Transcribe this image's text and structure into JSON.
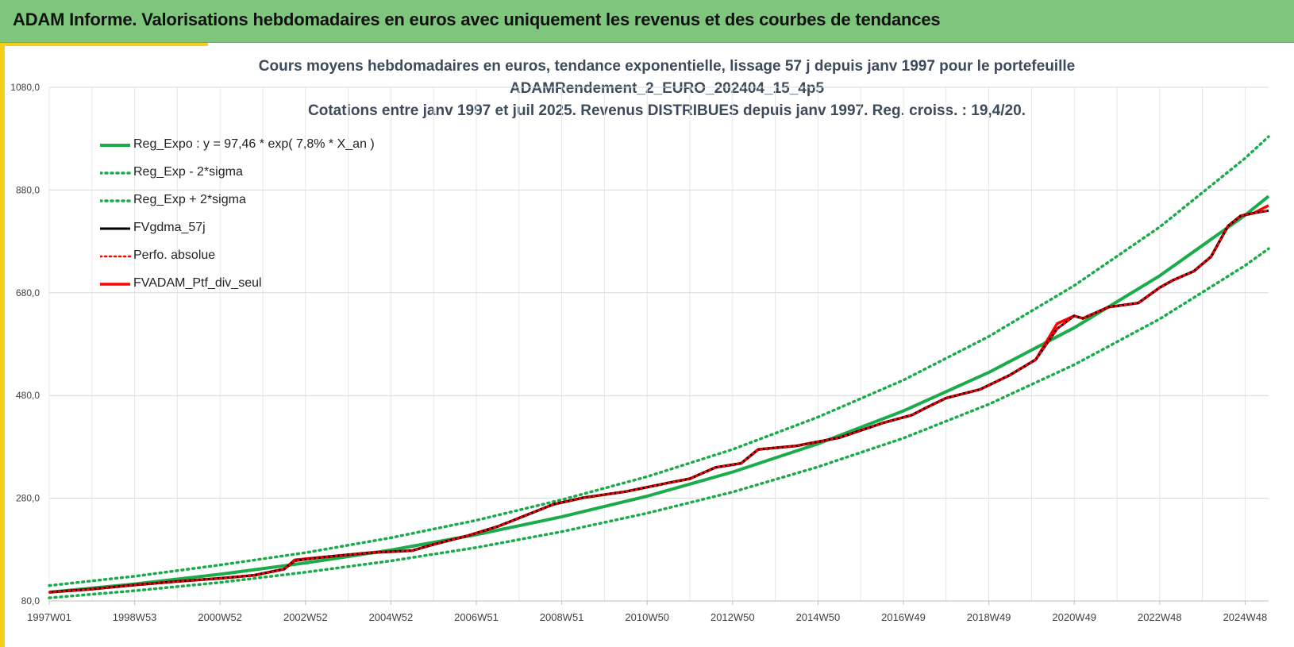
{
  "header": {
    "title": "ADAM Informe. Valorisations hebdomadaires en euros avec uniquement les revenus et des courbes de tendances"
  },
  "chart_data": {
    "type": "line",
    "title": [
      "Cours moyens hebdomadaires  en euros, tendance exponentielle, lissage 57 j depuis janv 1997 pour le portefeuille",
      "ADAMRendement_2_EURO_202404_15_4p5",
      "Cotations  entre janv 1997 et juil 2025. Revenus DISTRIBUES depuis janv 1997. Reg. croiss. : 19,4/20."
    ],
    "xlabel": "",
    "ylabel": "",
    "ylim": [
      80,
      1080
    ],
    "xlim": [
      1997.0,
      2025.55
    ],
    "y_ticks": [
      "80,0",
      "280,0",
      "480,0",
      "680,0",
      "880,0",
      "1080,0"
    ],
    "x_ticks": [
      {
        "label": "1997W01",
        "x": 1997.0
      },
      {
        "label": "1998W53",
        "x": 1999.0
      },
      {
        "label": "2000W52",
        "x": 2001.0
      },
      {
        "label": "2002W52",
        "x": 2003.0
      },
      {
        "label": "2004W52",
        "x": 2005.0
      },
      {
        "label": "2006W51",
        "x": 2007.0
      },
      {
        "label": "2008W51",
        "x": 2009.0
      },
      {
        "label": "2010W50",
        "x": 2011.0
      },
      {
        "label": "2012W50",
        "x": 2013.0
      },
      {
        "label": "2014W50",
        "x": 2015.0
      },
      {
        "label": "2016W49",
        "x": 2017.0
      },
      {
        "label": "2018W49",
        "x": 2019.0
      },
      {
        "label": "2020W49",
        "x": 2021.0
      },
      {
        "label": "2022W48",
        "x": 2023.0
      },
      {
        "label": "2024W48",
        "x": 2025.0
      }
    ],
    "grid": true,
    "legend_position": "top-left",
    "series": [
      {
        "name": "Reg_Expo : y = 97,46 *  exp( 7,8% *   X_an )",
        "color": "#1aab4b",
        "style": "solid",
        "x": [
          1997,
          1999,
          2001,
          2003,
          2005,
          2007,
          2009,
          2011,
          2013,
          2015,
          2017,
          2019,
          2021,
          2023,
          2025,
          2025.55
        ],
        "values": [
          97,
          113,
          132,
          154,
          179,
          209,
          244,
          284,
          331,
          386,
          450,
          525,
          612,
          713,
          831,
          868
        ]
      },
      {
        "name": "Reg_Exp - 2*sigma",
        "color": "#1aab4b",
        "style": "dotted",
        "x": [
          1997,
          1999,
          2001,
          2003,
          2005,
          2007,
          2009,
          2011,
          2013,
          2015,
          2017,
          2019,
          2021,
          2023,
          2025,
          2025.55
        ],
        "values": [
          86,
          100,
          116,
          136,
          158,
          184,
          215,
          251,
          292,
          341,
          397,
          463,
          540,
          629,
          733,
          766
        ]
      },
      {
        "name": "Reg_Exp + 2*sigma",
        "color": "#1aab4b",
        "style": "dotted",
        "x": [
          1997,
          1999,
          2001,
          2003,
          2005,
          2007,
          2009,
          2011,
          2013,
          2015,
          2017,
          2019,
          2021,
          2023,
          2025,
          2025.55
        ],
        "values": [
          110,
          128,
          150,
          174,
          203,
          237,
          277,
          322,
          375,
          438,
          510,
          595,
          694,
          808,
          942,
          984
        ]
      },
      {
        "name": "FVgdma_57j",
        "color": "#000000",
        "style": "solid",
        "x": [
          1997,
          1998,
          1999,
          2000,
          2001,
          2001.8,
          2002.5,
          2002.75,
          2003.5,
          2004.5,
          2005.5,
          2006,
          2006.8,
          2007.5,
          2008.2,
          2008.8,
          2009.5,
          2010.5,
          2011.5,
          2012,
          2012.6,
          2013.2,
          2013.6,
          2014.5,
          2015.5,
          2016.5,
          2017.2,
          2017.5,
          2018,
          2018.8,
          2019.5,
          2020.1,
          2020.6,
          2021,
          2021.2,
          2021.8,
          2022.5,
          2023,
          2023.3,
          2023.8,
          2024.2,
          2024.6,
          2024.9,
          2025.2,
          2025.55
        ],
        "values": [
          97,
          103,
          111,
          118,
          124,
          130,
          142,
          158,
          166,
          174,
          178,
          190,
          207,
          225,
          248,
          268,
          281,
          293,
          310,
          318,
          340,
          348,
          375,
          382,
          398,
          426,
          442,
          455,
          475,
          492,
          520,
          550,
          610,
          635,
          630,
          652,
          660,
          690,
          704,
          722,
          750,
          810,
          830,
          835,
          840
        ]
      },
      {
        "name": "Perfo. absolue",
        "color": "#ff0000",
        "style": "dotted",
        "x": [
          1997,
          1998,
          1999,
          2000,
          2001,
          2001.8,
          2002.5,
          2002.75,
          2003.5,
          2004.5,
          2005.5,
          2006,
          2006.8,
          2007.5,
          2008.2,
          2008.8,
          2009.5,
          2010.5,
          2011.5,
          2012,
          2012.6,
          2013.2,
          2013.6,
          2014.5,
          2015.5,
          2016.5,
          2017.2,
          2017.5,
          2018,
          2018.8,
          2019.5,
          2020.1,
          2020.6,
          2021,
          2021.2,
          2021.8,
          2022.5,
          2023,
          2023.3,
          2023.8,
          2024.2,
          2024.6,
          2024.9,
          2025.2,
          2025.55
        ],
        "values": [
          97,
          103,
          111,
          118,
          124,
          130,
          142,
          158,
          166,
          174,
          178,
          190,
          207,
          225,
          248,
          268,
          281,
          293,
          310,
          318,
          340,
          348,
          375,
          382,
          398,
          426,
          442,
          455,
          475,
          492,
          520,
          550,
          610,
          635,
          630,
          652,
          660,
          690,
          704,
          722,
          750,
          810,
          830,
          835,
          840
        ]
      },
      {
        "name": "FVADAM_Ptf_div_seul",
        "color": "#ff0000",
        "style": "solid",
        "x": [
          1997,
          1998,
          1999,
          2000,
          2001,
          2001.8,
          2002.5,
          2002.75,
          2003.5,
          2004.5,
          2005.5,
          2006,
          2006.8,
          2007.5,
          2008.2,
          2008.8,
          2009.5,
          2010.5,
          2011.5,
          2012,
          2012.6,
          2013.2,
          2013.6,
          2014.5,
          2015.5,
          2016.5,
          2017.2,
          2017.5,
          2018,
          2018.8,
          2019.5,
          2020.1,
          2020.6,
          2021,
          2021.2,
          2021.8,
          2022.5,
          2023,
          2023.3,
          2023.8,
          2024.2,
          2024.6,
          2024.9,
          2025.2,
          2025.55
        ],
        "values": [
          97,
          103,
          111,
          118,
          124,
          130,
          142,
          160,
          166,
          174,
          178,
          190,
          207,
          225,
          248,
          268,
          281,
          293,
          310,
          318,
          340,
          348,
          375,
          382,
          398,
          426,
          442,
          455,
          475,
          492,
          520,
          550,
          620,
          635,
          630,
          652,
          660,
          690,
          704,
          722,
          750,
          810,
          830,
          835,
          850
        ]
      }
    ]
  }
}
